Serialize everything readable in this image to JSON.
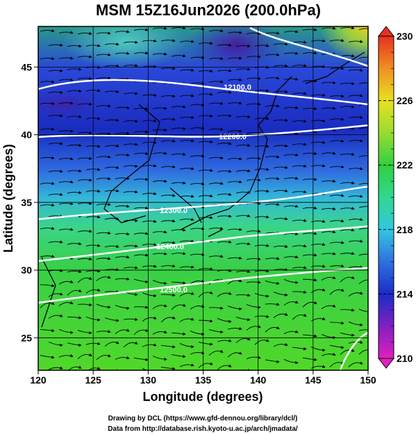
{
  "title": "MSM 15Z16Jun2026 (200.0hPa)",
  "x_axis": {
    "label": "Longitude (degrees)",
    "lim": [
      120,
      150
    ],
    "ticks": [
      120,
      125,
      130,
      135,
      140,
      145,
      150
    ]
  },
  "y_axis": {
    "label": "Latitude  (degrees)",
    "lim": [
      22.6,
      48
    ],
    "ticks": [
      25,
      30,
      35,
      40,
      45
    ]
  },
  "contour_labels": [
    "12100.0",
    "12200.0",
    "12300.0",
    "12400.0",
    "12500.0"
  ],
  "colorbar": {
    "lim": [
      210,
      230
    ],
    "ticks": [
      210,
      214,
      218,
      222,
      226,
      230
    ]
  },
  "credits": [
    "Drawing by DCL (https://www.gfd-dennou.org/library/dcl/)",
    "Data from http://database.rish.kyoto-u.ac.jp/arch/jmadata/"
  ]
}
